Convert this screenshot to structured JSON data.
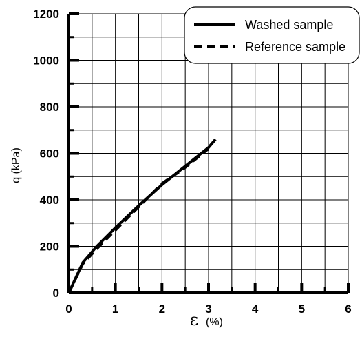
{
  "chart_data": {
    "type": "line",
    "xlabel_symbol": "ε",
    "xlabel_unit": "(%)",
    "ylabel": "q (kPa)",
    "xlim": [
      0,
      6
    ],
    "ylim": [
      0,
      1200
    ],
    "x_ticks": [
      0,
      1,
      2,
      3,
      4,
      5,
      6
    ],
    "y_ticks": [
      0,
      200,
      400,
      600,
      800,
      1000,
      1200
    ],
    "grid": true,
    "legend_position": "top-right",
    "series": [
      {
        "name": "Washed sample",
        "style": "solid",
        "color": "#000000",
        "x": [
          0,
          0.3,
          0.6,
          1.0,
          1.5,
          2.0,
          2.5,
          3.0,
          3.15
        ],
        "y": [
          0,
          130,
          200,
          280,
          375,
          465,
          545,
          625,
          660
        ]
      },
      {
        "name": "Reference sample",
        "style": "dashed",
        "color": "#000000",
        "x": [
          0,
          0.3,
          0.6,
          1.0,
          1.5,
          2.0,
          2.4,
          2.5,
          3.0
        ],
        "y": [
          0,
          125,
          190,
          270,
          370,
          470,
          525,
          540,
          620
        ]
      }
    ]
  }
}
